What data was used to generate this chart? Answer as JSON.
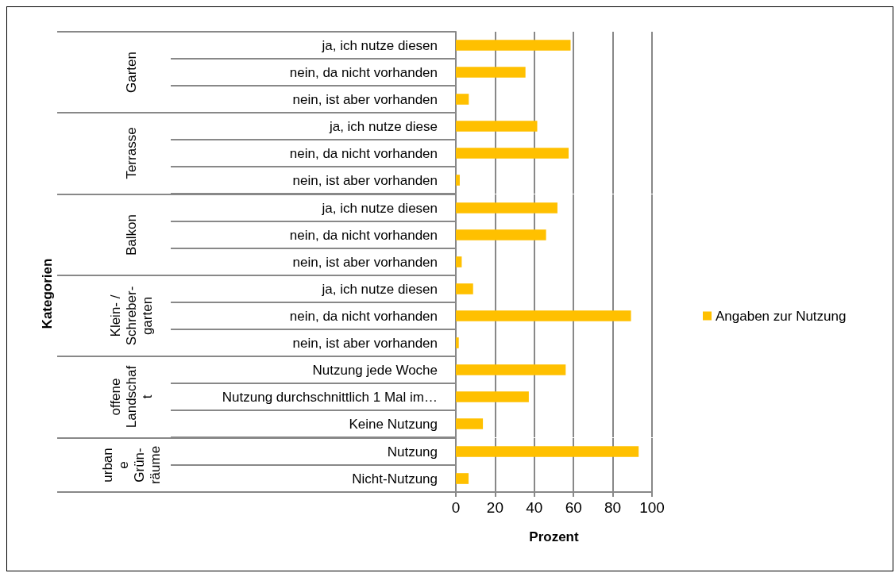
{
  "chart_data": [
    {
      "type": "bar",
      "orientation": "horizontal",
      "ylabel": "Garten",
      "categories": [
        "ja, ich nutze diesen",
        "nein, da nicht vorhanden",
        "nein, ist aber vorhanden"
      ],
      "series": [
        {
          "color": "#ffc000",
          "values": [
            58.5,
            35.5,
            6.6
          ]
        }
      ],
      "xlim": [
        0,
        100
      ],
      "xticks": [
        0,
        20,
        40,
        60,
        80,
        100
      ],
      "grid": "x",
      "tick_labels": "y"
    },
    {
      "type": "bar",
      "orientation": "horizontal",
      "ylabel": "Terrasse",
      "categories": [
        "ja, ich nutze diese",
        "nein, da nicht vorhanden",
        "nein, ist aber vorhanden"
      ],
      "series": [
        {
          "color": "#ffc000",
          "values": [
            41.5,
            57.5,
            2
          ]
        }
      ],
      "xlim": [
        0,
        100
      ],
      "xticks": [
        0,
        20,
        40,
        60,
        80,
        100
      ],
      "grid": "x",
      "tick_labels": "y"
    },
    {
      "type": "bar",
      "orientation": "horizontal",
      "ylabel": "Balkon",
      "annotations": [
        "Kategorien"
      ],
      "categories": [
        "ja, ich nutze diesen",
        "nein, da nicht vorhanden",
        "nein, ist aber vorhanden"
      ],
      "series": [
        {
          "color": "#ffc000",
          "values": [
            51.8,
            46,
            3
          ]
        }
      ],
      "xlim": [
        0,
        100
      ],
      "xticks": [
        0,
        20,
        40,
        60,
        80,
        100
      ],
      "grid": "x",
      "tick_labels": "y"
    },
    {
      "type": "bar",
      "orientation": "horizontal",
      "ylabel": "Klein- /\nSchreber-\ngarten",
      "categories": [
        "ja, ich nutze diesen",
        "nein, da nicht vorhanden",
        "nein, ist aber vorhanden"
      ],
      "series": [
        {
          "name": "Angaben zur Nutzung",
          "color": "#ffc000",
          "values": [
            8.8,
            89.3,
            1.5
          ]
        }
      ],
      "xlim": [
        0,
        100
      ],
      "xticks": [
        0,
        20,
        40,
        60,
        80,
        100
      ],
      "grid": "x",
      "tick_labels": "y",
      "legend": "right"
    },
    {
      "type": "bar",
      "orientation": "horizontal",
      "ylabel": "offene\nLandschaf\nt",
      "categories": [
        "Nutzung jede Woche",
        "Nutzung durchschnittlich 1 Mal im…",
        "Keine Nutzung"
      ],
      "series": [
        {
          "color": "#ffc000",
          "values": [
            56,
            37.2,
            13.8
          ]
        }
      ],
      "xlim": [
        0,
        100
      ],
      "xticks": [
        0,
        20,
        40,
        60,
        80,
        100
      ],
      "grid": "x",
      "tick_labels": "y"
    },
    {
      "type": "bar",
      "orientation": "horizontal",
      "ylabel": "urban\ne\nGrün-\nräume",
      "xlabel": "Prozent",
      "categories": [
        "Nutzung",
        "Nicht-Nutzung"
      ],
      "series": [
        {
          "color": "#ffc000",
          "values": [
            93.2,
            6.5
          ]
        }
      ],
      "xlim": [
        0,
        100
      ],
      "xticks": [
        0,
        20,
        40,
        60,
        80,
        100
      ],
      "grid": "x"
    }
  ]
}
